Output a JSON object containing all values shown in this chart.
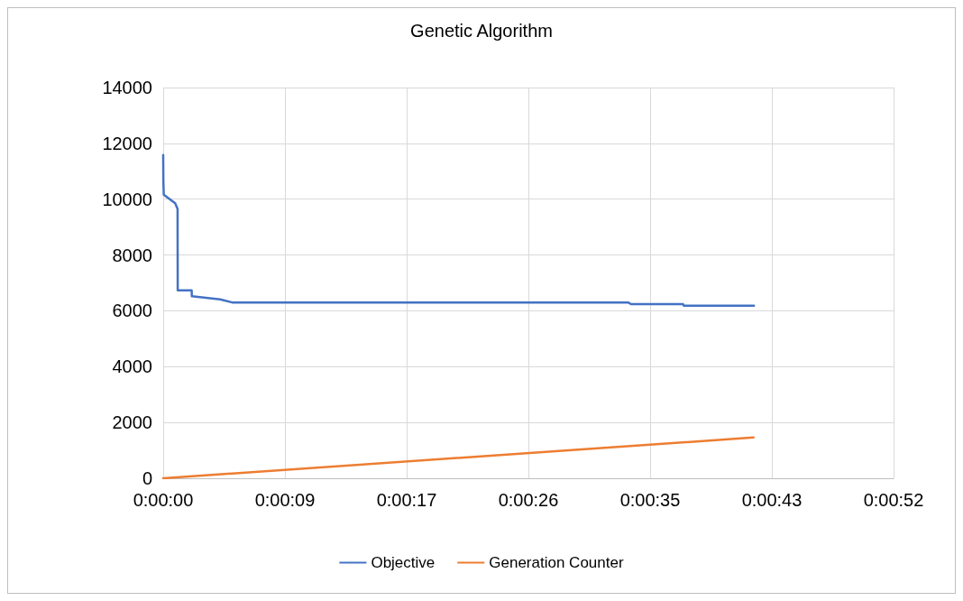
{
  "chart_data": {
    "type": "line",
    "title": "Genetic Algorithm",
    "xlim": [
      0,
      51.84
    ],
    "xticks": [
      {
        "value": 0,
        "label": "0:00:00"
      },
      {
        "value": 8.64,
        "label": "0:00:09"
      },
      {
        "value": 17.28,
        "label": "0:00:17"
      },
      {
        "value": 25.92,
        "label": "0:00:26"
      },
      {
        "value": 34.56,
        "label": "0:00:35"
      },
      {
        "value": 43.2,
        "label": "0:00:43"
      },
      {
        "value": 51.84,
        "label": "0:00:52"
      }
    ],
    "ylim": [
      0,
      14000
    ],
    "yticks": [
      0,
      2000,
      4000,
      6000,
      8000,
      10000,
      12000,
      14000
    ],
    "grid": true,
    "legend": "bottom",
    "marker": "none",
    "line_style": "solid",
    "series": [
      {
        "name": "Objective",
        "color": "#4472c4",
        "x": [
          0,
          0.01,
          0.04,
          0.85,
          1.02,
          1.02,
          1.03,
          2.02,
          2.03,
          4.04,
          4.89,
          10.2,
          20,
          33.0,
          33.2,
          36.9,
          36.95,
          41.93
        ],
        "values": [
          11580,
          10670,
          10160,
          9850,
          9650,
          9200,
          6730,
          6730,
          6520,
          6410,
          6300,
          6300,
          6300,
          6300,
          6240,
          6240,
          6180,
          6180
        ]
      },
      {
        "name": "Generation Counter",
        "color": "#ed7d31",
        "x": [
          0,
          41.9
        ],
        "values": [
          0,
          1460
        ]
      }
    ]
  }
}
